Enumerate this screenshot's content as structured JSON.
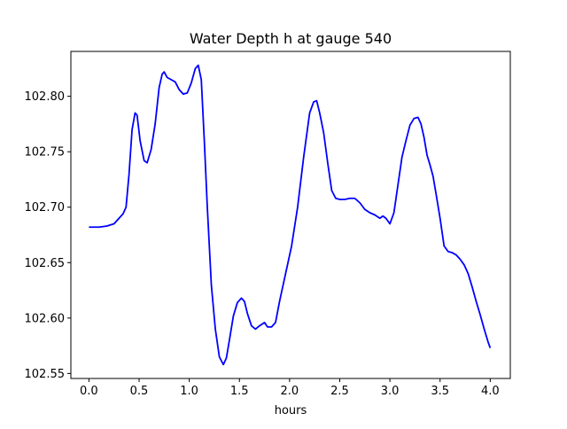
{
  "chart_data": {
    "type": "line",
    "title": "Water Depth h at gauge 540",
    "xlabel": "hours",
    "ylabel": "",
    "xlim": [
      -0.18,
      4.2
    ],
    "ylim": [
      102.5455,
      102.8405
    ],
    "xticks": [
      0.0,
      0.5,
      1.0,
      1.5,
      2.0,
      2.5,
      3.0,
      3.5,
      4.0
    ],
    "xtick_labels": [
      "0.0",
      "0.5",
      "1.0",
      "1.5",
      "2.0",
      "2.5",
      "3.0",
      "3.5",
      "4.0"
    ],
    "yticks": [
      102.55,
      102.6,
      102.65,
      102.7,
      102.75,
      102.8
    ],
    "ytick_labels": [
      "102.55",
      "102.60",
      "102.65",
      "102.70",
      "102.75",
      "102.80"
    ],
    "grid": false,
    "series": [
      {
        "color": "#0000ff",
        "x": [
          0.0,
          0.1,
          0.18,
          0.25,
          0.3,
          0.34,
          0.37,
          0.4,
          0.43,
          0.46,
          0.48,
          0.51,
          0.55,
          0.58,
          0.62,
          0.66,
          0.7,
          0.73,
          0.75,
          0.78,
          0.82,
          0.86,
          0.9,
          0.94,
          0.98,
          1.02,
          1.06,
          1.09,
          1.12,
          1.15,
          1.18,
          1.22,
          1.26,
          1.3,
          1.34,
          1.37,
          1.4,
          1.44,
          1.48,
          1.52,
          1.55,
          1.58,
          1.62,
          1.66,
          1.7,
          1.75,
          1.78,
          1.82,
          1.86,
          1.9,
          1.96,
          2.02,
          2.08,
          2.14,
          2.2,
          2.24,
          2.27,
          2.3,
          2.34,
          2.38,
          2.42,
          2.46,
          2.5,
          2.55,
          2.6,
          2.65,
          2.7,
          2.75,
          2.8,
          2.85,
          2.9,
          2.93,
          2.96,
          3.0,
          3.04,
          3.08,
          3.12,
          3.16,
          3.2,
          3.24,
          3.28,
          3.31,
          3.34,
          3.37,
          3.4,
          3.43,
          3.46,
          3.5,
          3.54,
          3.58,
          3.62,
          3.66,
          3.7,
          3.74,
          3.78,
          3.82,
          3.86,
          3.9,
          3.94,
          3.98,
          4.0
        ],
        "y": [
          102.682,
          102.682,
          102.683,
          102.685,
          102.69,
          102.694,
          102.7,
          102.73,
          102.77,
          102.785,
          102.783,
          102.76,
          102.742,
          102.74,
          102.752,
          102.775,
          102.808,
          102.82,
          102.822,
          102.817,
          102.815,
          102.813,
          102.806,
          102.802,
          102.803,
          102.812,
          102.825,
          102.828,
          102.815,
          102.76,
          102.7,
          102.63,
          102.59,
          102.565,
          102.558,
          102.564,
          102.58,
          102.602,
          102.614,
          102.618,
          102.615,
          102.604,
          102.593,
          102.59,
          102.593,
          102.596,
          102.592,
          102.592,
          102.596,
          102.615,
          102.64,
          102.665,
          102.7,
          102.745,
          102.785,
          102.795,
          102.796,
          102.785,
          102.767,
          102.74,
          102.715,
          102.708,
          102.707,
          102.707,
          102.708,
          102.708,
          102.704,
          102.698,
          102.695,
          102.693,
          102.69,
          102.692,
          102.69,
          102.685,
          102.695,
          102.72,
          102.745,
          102.76,
          102.774,
          102.78,
          102.781,
          102.775,
          102.763,
          102.747,
          102.738,
          102.728,
          102.712,
          102.69,
          102.665,
          102.66,
          102.659,
          102.657,
          102.653,
          102.648,
          102.64,
          102.628,
          102.615,
          102.603,
          102.59,
          102.578,
          102.573
        ]
      }
    ]
  }
}
